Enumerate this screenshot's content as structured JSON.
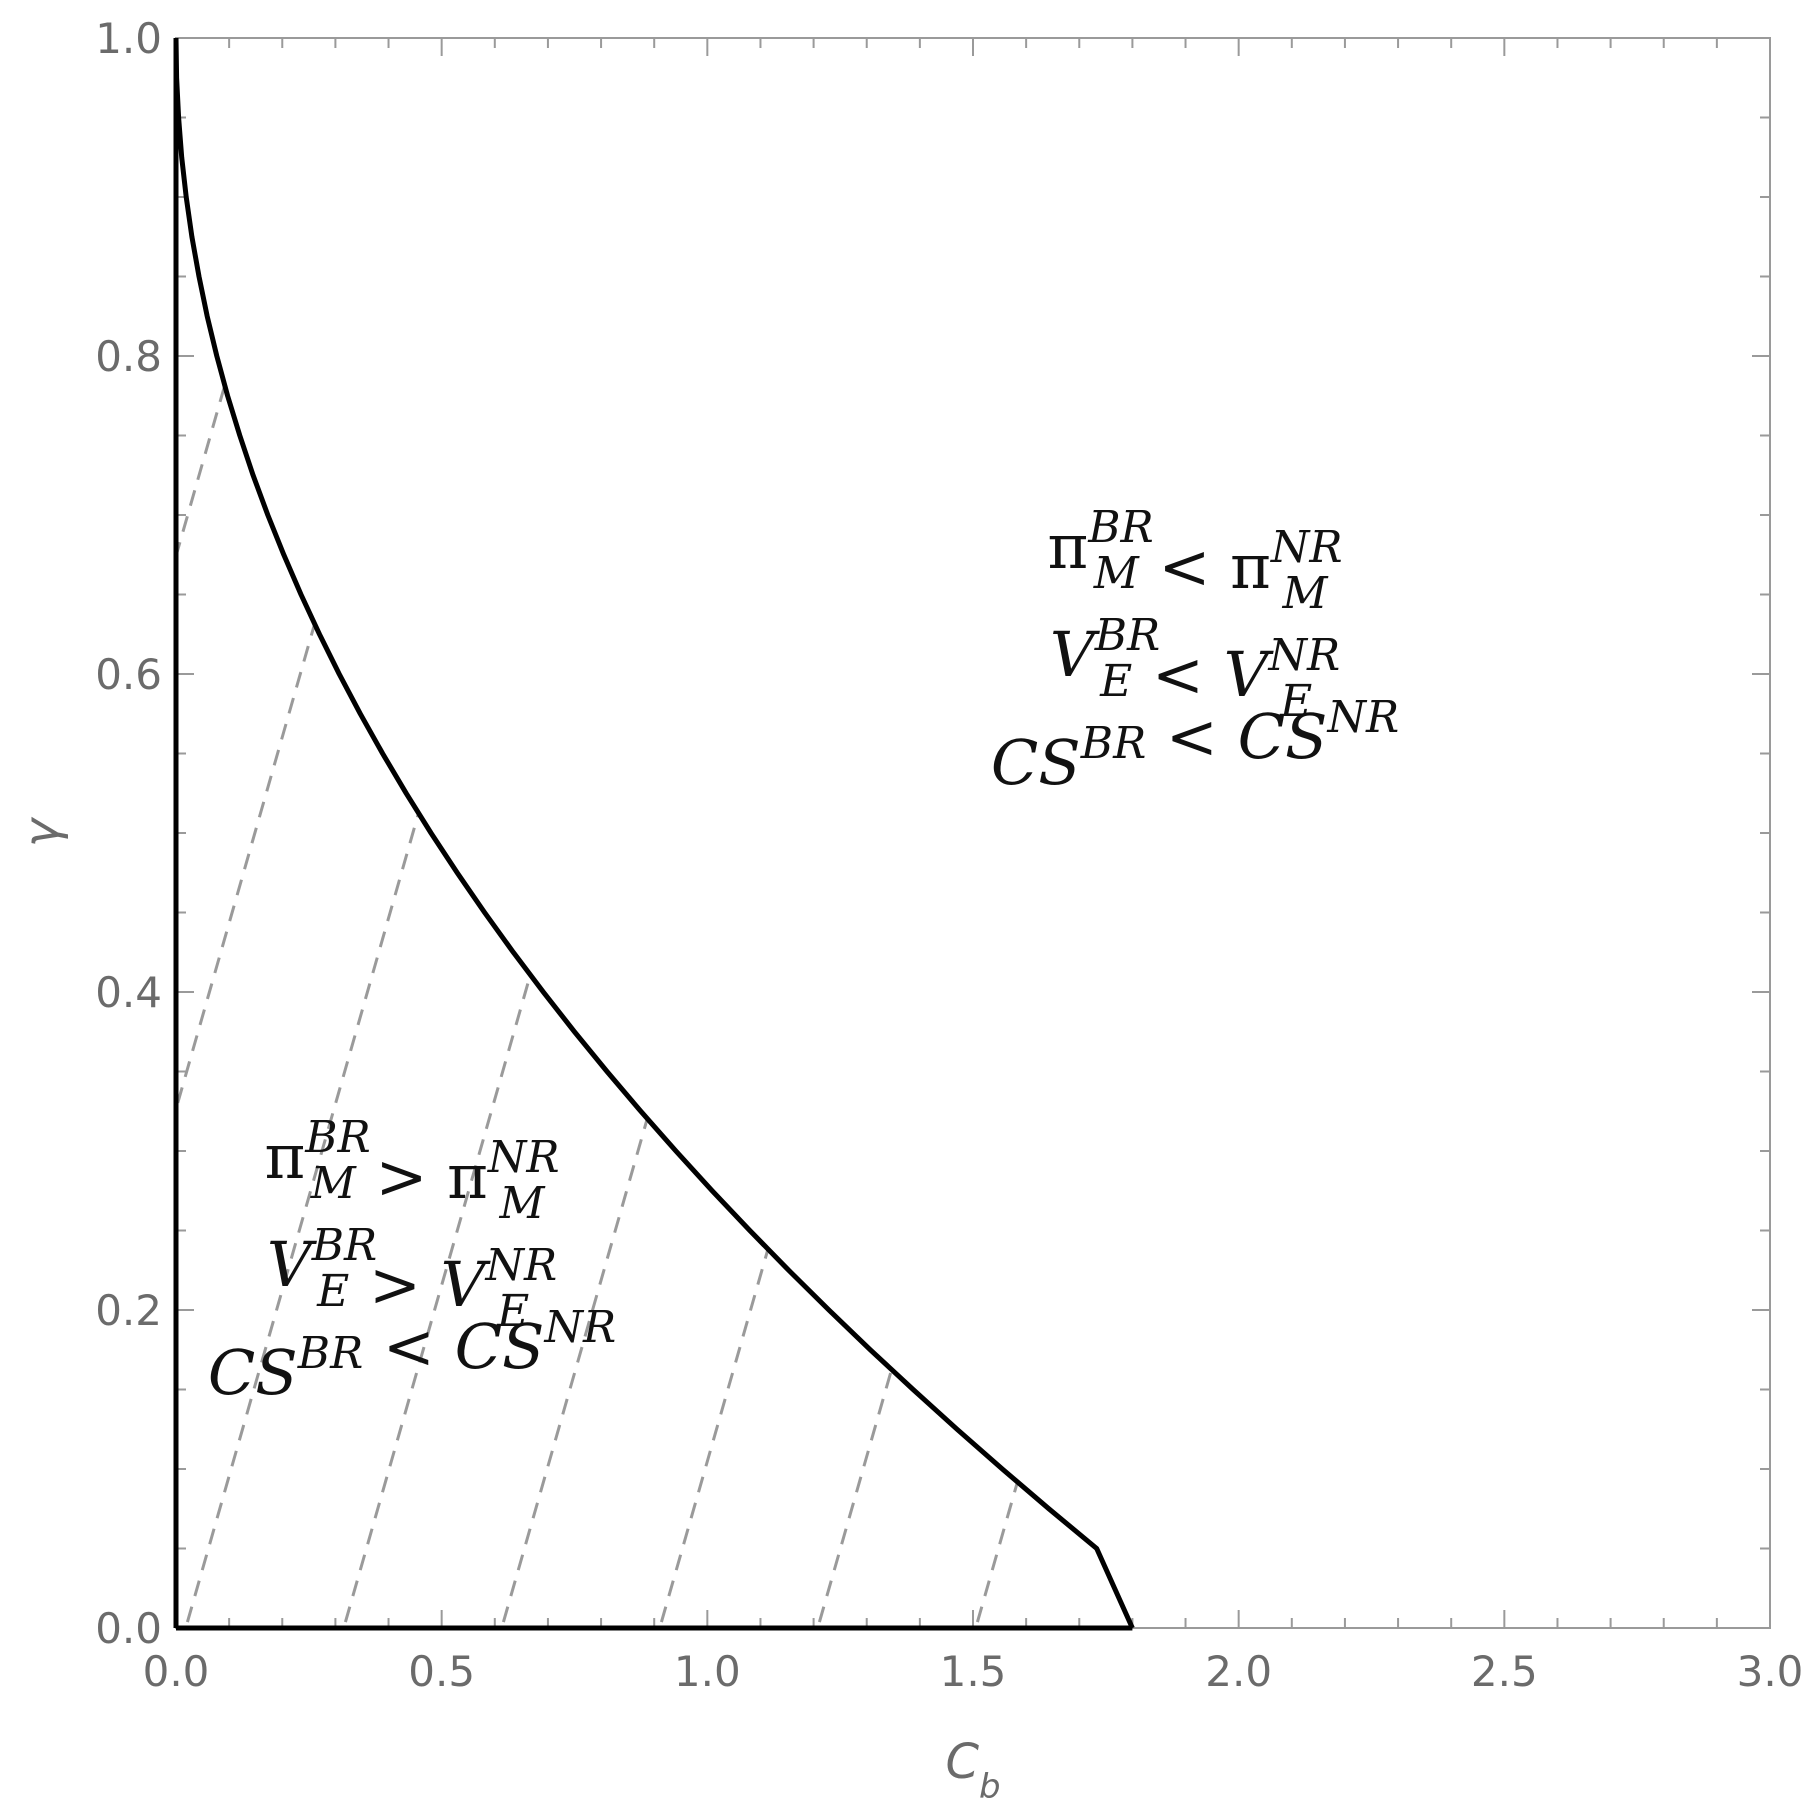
{
  "chart_data": {
    "type": "line",
    "title": "",
    "xlabel": "C_b",
    "ylabel": "γ",
    "xlim": [
      0,
      3
    ],
    "ylim": [
      0,
      1
    ],
    "x_ticks": [
      "0.0",
      "0.5",
      "1.0",
      "1.5",
      "2.0",
      "2.5",
      "3.0"
    ],
    "y_ticks": [
      "0.0",
      "0.2",
      "0.4",
      "0.6",
      "0.8",
      "1.0"
    ],
    "grid": false,
    "colors": {
      "boundary": "#000000",
      "hatch": "#9a9a9a",
      "frame": "#9a9a9a",
      "text": "#6b6b6b"
    },
    "series": [
      {
        "x": [
          0.0,
          0.0012,
          0.0048,
          0.0108,
          0.0192,
          0.03,
          0.0432,
          0.0588,
          0.0768,
          0.0972,
          0.12,
          0.1452,
          0.1728,
          0.2028,
          0.2352,
          0.27,
          0.3072,
          0.3468,
          0.3888,
          0.4332,
          0.48,
          0.5292,
          0.5808,
          0.6348,
          0.6912,
          0.75,
          0.8112,
          0.8748,
          0.9408,
          1.0092,
          1.08,
          1.1532,
          1.2288,
          1.3068,
          1.3872,
          1.47,
          1.5552,
          1.6428,
          1.7328,
          1.8
        ],
        "y": [
          1.0,
          0.975,
          0.95,
          0.925,
          0.9,
          0.875,
          0.85,
          0.825,
          0.8,
          0.775,
          0.75,
          0.725,
          0.7,
          0.675,
          0.65,
          0.625,
          0.6,
          0.575,
          0.55,
          0.525,
          0.5,
          0.475,
          0.45,
          0.425,
          0.4,
          0.375,
          0.35,
          0.325,
          0.3,
          0.275,
          0.25,
          0.225,
          0.2,
          0.175,
          0.15,
          0.125,
          0.1,
          0.075,
          0.05,
          0.0
        ]
      }
    ],
    "annotations": [
      {
        "region": "upper-right",
        "lines": [
          {
            "left": "π",
            "left_sub": "M",
            "left_sup": "BR",
            "op": "<",
            "right": "π",
            "right_sub": "M",
            "right_sup": "NR"
          },
          {
            "left": "V",
            "left_sub": "E",
            "left_sup": "BR",
            "op": "<",
            "right": "V",
            "right_sub": "E",
            "right_sup": "NR"
          },
          {
            "left": "CS",
            "left_sub": "",
            "left_sup": "BR",
            "op": "<",
            "right": "CS",
            "right_sub": "",
            "right_sup": "NR"
          }
        ]
      },
      {
        "region": "lower-left",
        "lines": [
          {
            "left": "π",
            "left_sub": "M",
            "left_sup": "BR",
            "op": ">",
            "right": "π",
            "right_sub": "M",
            "right_sup": "NR"
          },
          {
            "left": "V",
            "left_sub": "E",
            "left_sup": "BR",
            "op": ">",
            "right": "V",
            "right_sub": "E",
            "right_sup": "NR"
          },
          {
            "left": "CS",
            "left_sub": "",
            "left_sup": "BR",
            "op": "<",
            "right": "CS",
            "right_sub": "",
            "right_sup": "NR"
          }
        ]
      }
    ]
  }
}
